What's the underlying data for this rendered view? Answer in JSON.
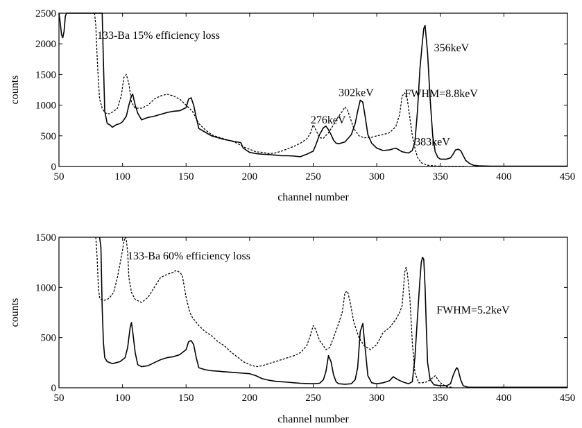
{
  "chart_data": [
    {
      "type": "line",
      "xlabel": "channel number",
      "ylabel": "counts",
      "xlim": [
        50,
        450
      ],
      "ylim": [
        0,
        2500
      ],
      "xticks": [
        50,
        100,
        150,
        200,
        250,
        300,
        350,
        400,
        450
      ],
      "yticks": [
        0,
        500,
        1000,
        1500,
        2000,
        2500
      ],
      "annotations": [
        {
          "text": "133-Ba 15% efficiency loss",
          "x": 80,
          "y": 2080
        },
        {
          "text": "356keV",
          "x": 345,
          "y": 1880
        },
        {
          "text": "302keV",
          "x": 270,
          "y": 1150
        },
        {
          "text": "FWHM=8.8keV",
          "x": 322,
          "y": 1130
        },
        {
          "text": "276keV",
          "x": 248,
          "y": 700
        },
        {
          "text": "383keV",
          "x": 330,
          "y": 345
        }
      ],
      "series": [
        {
          "style": "solid",
          "x": [
            50,
            51,
            52,
            53,
            54,
            55,
            56,
            57,
            58,
            60,
            62,
            64,
            66,
            68,
            70,
            72,
            74,
            76,
            78,
            80,
            82,
            83,
            84,
            85,
            86,
            88,
            90,
            92,
            95,
            98,
            100,
            103,
            105,
            107,
            108,
            110,
            112,
            115,
            120,
            125,
            130,
            135,
            140,
            145,
            150,
            152,
            154,
            156,
            158,
            160,
            165,
            170,
            175,
            180,
            185,
            190,
            193,
            195,
            200,
            205,
            210,
            215,
            220,
            225,
            230,
            235,
            240,
            245,
            250,
            252,
            255,
            258,
            260,
            262,
            264,
            266,
            268,
            270,
            275,
            280,
            283,
            285,
            287,
            289,
            291,
            293,
            296,
            300,
            305,
            310,
            315,
            320,
            325,
            328,
            330,
            332,
            334,
            336,
            337,
            338,
            340,
            342,
            344,
            346,
            348,
            350,
            355,
            358,
            360,
            362,
            364,
            366,
            368,
            370,
            373,
            376,
            380,
            390,
            400,
            420,
            440,
            450
          ],
          "y": [
            2500,
            2350,
            2150,
            2100,
            2200,
            2450,
            2500,
            2500,
            2500,
            2500,
            2500,
            2500,
            2500,
            2500,
            2500,
            2500,
            2500,
            2500,
            2500,
            2500,
            2500,
            2500,
            2500,
            1700,
            900,
            700,
            680,
            640,
            680,
            700,
            730,
            820,
            1000,
            1150,
            1180,
            1000,
            870,
            760,
            800,
            820,
            850,
            880,
            900,
            910,
            960,
            1100,
            1120,
            1000,
            800,
            620,
            560,
            500,
            470,
            440,
            420,
            400,
            390,
            300,
            230,
            210,
            200,
            195,
            185,
            175,
            175,
            170,
            160,
            200,
            250,
            350,
            520,
            630,
            660,
            600,
            520,
            430,
            380,
            370,
            400,
            520,
            700,
            900,
            1080,
            1050,
            800,
            520,
            380,
            300,
            260,
            270,
            300,
            240,
            220,
            260,
            400,
            900,
            1600,
            2050,
            2250,
            2300,
            1850,
            1100,
            500,
            240,
            150,
            120,
            120,
            140,
            200,
            270,
            280,
            260,
            180,
            100,
            50,
            20,
            10,
            5,
            5,
            5,
            5,
            5
          ]
        },
        {
          "style": "dashed",
          "x": [
            78,
            79,
            80,
            81,
            82,
            84,
            86,
            88,
            90,
            93,
            96,
            99,
            101,
            103,
            105,
            107,
            110,
            115,
            120,
            125,
            130,
            135,
            140,
            145,
            150,
            155,
            160,
            165,
            170,
            175,
            180,
            185,
            190,
            195,
            200,
            205,
            210,
            215,
            220,
            225,
            230,
            235,
            240,
            245,
            248,
            250,
            252,
            255,
            258,
            262,
            266,
            270,
            273,
            275,
            277,
            279,
            282,
            286,
            290,
            295,
            300,
            305,
            310,
            315,
            318,
            320,
            322,
            324,
            326,
            328,
            330,
            332,
            335,
            340,
            345,
            350,
            360,
            370
          ],
          "y": [
            2500,
            2300,
            1800,
            1400,
            1100,
            950,
            880,
            860,
            860,
            900,
            950,
            1150,
            1450,
            1500,
            1350,
            1050,
            950,
            950,
            1000,
            1100,
            1150,
            1180,
            1150,
            1100,
            1000,
            900,
            700,
            600,
            520,
            480,
            450,
            420,
            380,
            320,
            280,
            240,
            230,
            210,
            220,
            250,
            290,
            330,
            380,
            450,
            550,
            680,
            600,
            470,
            460,
            550,
            680,
            820,
            900,
            970,
            920,
            800,
            620,
            500,
            470,
            470,
            500,
            520,
            550,
            650,
            850,
            1150,
            1200,
            1100,
            800,
            500,
            300,
            150,
            60,
            20,
            10,
            5,
            5,
            5
          ]
        }
      ]
    },
    {
      "type": "line",
      "xlabel": "channel number",
      "ylabel": "counts",
      "xlim": [
        50,
        450
      ],
      "ylim": [
        0,
        1500
      ],
      "xticks": [
        50,
        100,
        150,
        200,
        250,
        300,
        350,
        400,
        450
      ],
      "yticks": [
        0,
        500,
        1000,
        1500
      ],
      "annotations": [
        {
          "text": "133-Ba 60% efficiency loss",
          "x": 104,
          "y": 1280
        },
        {
          "text": "FWHM=5.2keV",
          "x": 347,
          "y": 740
        }
      ],
      "series": [
        {
          "style": "solid",
          "x": [
            82,
            83,
            84,
            85,
            86,
            88,
            90,
            92,
            95,
            98,
            100,
            102,
            104,
            106,
            107,
            108,
            110,
            112,
            115,
            120,
            125,
            130,
            135,
            140,
            145,
            150,
            152,
            154,
            156,
            158,
            160,
            165,
            170,
            175,
            180,
            185,
            190,
            195,
            200,
            205,
            210,
            215,
            220,
            225,
            230,
            235,
            240,
            245,
            250,
            255,
            258,
            260,
            262,
            264,
            266,
            268,
            270,
            275,
            280,
            283,
            285,
            287,
            289,
            291,
            293,
            296,
            300,
            305,
            310,
            313,
            316,
            320,
            325,
            328,
            330,
            332,
            334,
            335,
            336,
            337,
            338,
            339,
            340,
            342,
            345,
            350,
            355,
            358,
            360,
            362,
            363,
            364,
            366,
            368,
            372,
            380,
            400,
            450
          ],
          "y": [
            1500,
            1400,
            800,
            450,
            300,
            260,
            250,
            240,
            250,
            260,
            280,
            300,
            400,
            600,
            650,
            560,
            350,
            230,
            210,
            220,
            250,
            280,
            300,
            310,
            330,
            380,
            460,
            470,
            430,
            300,
            200,
            180,
            170,
            165,
            160,
            155,
            150,
            145,
            140,
            120,
            90,
            75,
            65,
            60,
            55,
            50,
            45,
            42,
            40,
            45,
            80,
            160,
            320,
            260,
            130,
            60,
            40,
            35,
            40,
            80,
            200,
            560,
            640,
            380,
            120,
            50,
            40,
            50,
            70,
            110,
            85,
            60,
            40,
            60,
            300,
            700,
            1080,
            1250,
            1300,
            1280,
            1000,
            600,
            250,
            80,
            30,
            20,
            20,
            40,
            120,
            180,
            200,
            180,
            80,
            20,
            5,
            5,
            5,
            5
          ]
        },
        {
          "style": "dashed",
          "x": [
            79,
            80,
            81,
            82,
            83,
            85,
            88,
            90,
            93,
            96,
            99,
            101,
            102,
            103,
            104,
            105,
            107,
            110,
            115,
            120,
            125,
            130,
            135,
            140,
            142,
            145,
            147,
            150,
            153,
            155,
            160,
            165,
            170,
            175,
            180,
            185,
            190,
            195,
            200,
            205,
            210,
            215,
            220,
            225,
            230,
            235,
            240,
            245,
            248,
            250,
            252,
            255,
            258,
            260,
            263,
            266,
            270,
            273,
            275,
            277,
            279,
            282,
            286,
            290,
            295,
            300,
            305,
            310,
            315,
            318,
            320,
            322,
            323,
            324,
            326,
            328,
            330,
            333,
            336,
            340,
            343,
            346,
            350,
            355,
            360
          ],
          "y": [
            1500,
            1300,
            1000,
            900,
            880,
            870,
            880,
            900,
            950,
            1100,
            1300,
            1450,
            1500,
            1480,
            1350,
            1100,
            950,
            880,
            850,
            900,
            1000,
            1100,
            1130,
            1150,
            1170,
            1150,
            1120,
            900,
            750,
            700,
            620,
            560,
            520,
            460,
            420,
            360,
            310,
            260,
            230,
            210,
            220,
            240,
            260,
            280,
            300,
            320,
            350,
            420,
            530,
            620,
            580,
            470,
            420,
            380,
            400,
            500,
            640,
            760,
            950,
            960,
            860,
            650,
            500,
            420,
            380,
            430,
            550,
            600,
            680,
            750,
            820,
            1150,
            1200,
            1150,
            900,
            450,
            150,
            50,
            50,
            60,
            90,
            120,
            50,
            10,
            5
          ]
        }
      ]
    }
  ]
}
